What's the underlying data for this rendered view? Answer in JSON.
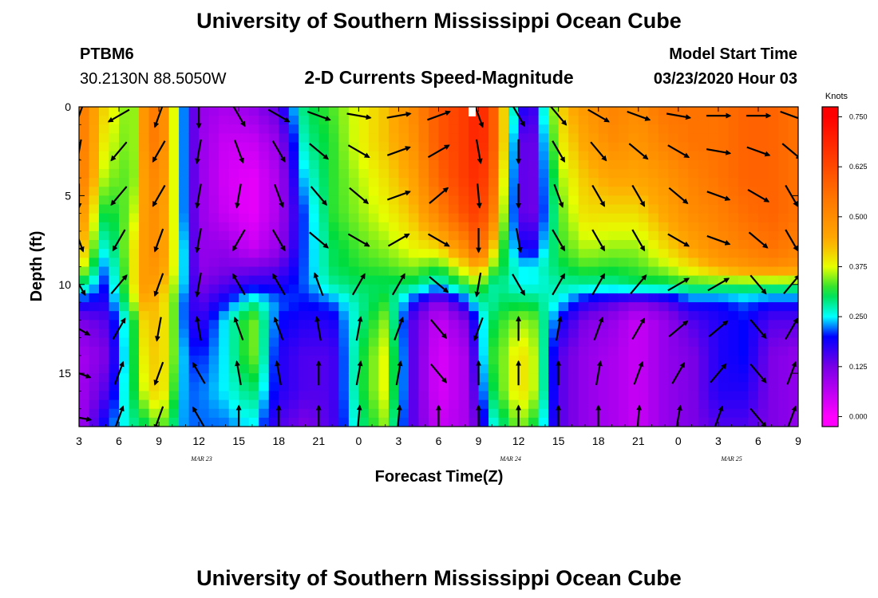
{
  "header": {
    "title": "University of Southern Mississippi Ocean Cube",
    "station_id": "PTBM6",
    "station_coords": "30.2130N 88.5050W",
    "subtitle": "2-D Currents Speed-Magnitude",
    "model_start_label": "Model Start Time",
    "model_start_value": "03/23/2020 Hour 03"
  },
  "footer": {
    "title": "University of Southern Mississippi Ocean Cube"
  },
  "chart_data": {
    "type": "heatmap",
    "title": "2-D Currents Speed-Magnitude",
    "xlabel": "Forecast Time(Z)",
    "ylabel": "Depth (ft)",
    "x_unit": "forecast hours since model start (03/23/2020 03Z)",
    "xlim": [
      0,
      54
    ],
    "ylim": [
      18,
      0
    ],
    "x_ticks": [
      {
        "h": 0,
        "label": "3"
      },
      {
        "h": 3,
        "label": "6"
      },
      {
        "h": 6,
        "label": "9"
      },
      {
        "h": 9,
        "label": "12"
      },
      {
        "h": 12,
        "label": "15"
      },
      {
        "h": 15,
        "label": "18"
      },
      {
        "h": 18,
        "label": "21"
      },
      {
        "h": 21,
        "label": "0"
      },
      {
        "h": 24,
        "label": "3"
      },
      {
        "h": 27,
        "label": "6"
      },
      {
        "h": 30,
        "label": "9"
      },
      {
        "h": 33,
        "label": "12"
      },
      {
        "h": 36,
        "label": "15"
      },
      {
        "h": 39,
        "label": "18"
      },
      {
        "h": 42,
        "label": "21"
      },
      {
        "h": 45,
        "label": "0"
      },
      {
        "h": 48,
        "label": "3"
      },
      {
        "h": 51,
        "label": "6"
      },
      {
        "h": 54,
        "label": "9"
      }
    ],
    "date_labels": [
      {
        "h": 9.2,
        "label": "MAR 23"
      },
      {
        "h": 32.4,
        "label": "MAR 24"
      },
      {
        "h": 49,
        "label": "MAR 25"
      }
    ],
    "y_ticks": [
      0,
      5,
      10,
      15
    ],
    "colorbar": {
      "title": "Knots",
      "min": -0.025,
      "max": 0.775,
      "ticks": [
        "0.000",
        "0.125",
        "0.250",
        "0.375",
        "0.500",
        "0.625",
        "0.750"
      ],
      "tick_values": [
        0.0,
        0.125,
        0.25,
        0.375,
        0.5,
        0.625,
        0.75
      ]
    },
    "speed_profiles": {
      "depths_ft": [
        0,
        2,
        4,
        6,
        8,
        9,
        10,
        11,
        12,
        14,
        16,
        18
      ],
      "series": [
        {
          "h": 0,
          "values": [
            0.55,
            0.55,
            0.55,
            0.5,
            0.45,
            0.4,
            0.3,
            0.2,
            0.12,
            0.08,
            0.08,
            0.08
          ]
        },
        {
          "h": 2,
          "values": [
            0.4,
            0.38,
            0.35,
            0.3,
            0.25,
            0.22,
            0.2,
            0.18,
            0.15,
            0.12,
            0.15,
            0.2
          ]
        },
        {
          "h": 4,
          "values": [
            0.33,
            0.33,
            0.33,
            0.35,
            0.38,
            0.38,
            0.38,
            0.35,
            0.3,
            0.3,
            0.3,
            0.28
          ]
        },
        {
          "h": 5,
          "values": [
            0.5,
            0.5,
            0.48,
            0.48,
            0.48,
            0.48,
            0.48,
            0.45,
            0.42,
            0.4,
            0.38,
            0.3
          ]
        },
        {
          "h": 6,
          "values": [
            0.55,
            0.55,
            0.52,
            0.5,
            0.5,
            0.48,
            0.45,
            0.42,
            0.42,
            0.42,
            0.42,
            0.35
          ]
        },
        {
          "h": 7,
          "values": [
            0.4,
            0.4,
            0.4,
            0.4,
            0.4,
            0.4,
            0.38,
            0.36,
            0.36,
            0.36,
            0.34,
            0.3
          ]
        },
        {
          "h": 8,
          "values": [
            0.2,
            0.2,
            0.2,
            0.2,
            0.22,
            0.22,
            0.22,
            0.2,
            0.2,
            0.22,
            0.22,
            0.22
          ]
        },
        {
          "h": 9,
          "values": [
            0.1,
            0.1,
            0.1,
            0.1,
            0.1,
            0.1,
            0.12,
            0.14,
            0.16,
            0.2,
            0.22,
            0.22
          ]
        },
        {
          "h": 11,
          "values": [
            0.08,
            0.05,
            0.04,
            0.05,
            0.1,
            0.12,
            0.15,
            0.2,
            0.25,
            0.25,
            0.25,
            0.22
          ]
        },
        {
          "h": 13,
          "values": [
            0.1,
            0.05,
            0.02,
            0.02,
            0.05,
            0.12,
            0.18,
            0.28,
            0.35,
            0.35,
            0.3,
            0.25
          ]
        },
        {
          "h": 15,
          "values": [
            0.15,
            0.1,
            0.08,
            0.08,
            0.1,
            0.14,
            0.18,
            0.22,
            0.2,
            0.18,
            0.18,
            0.15
          ]
        },
        {
          "h": 17,
          "values": [
            0.3,
            0.28,
            0.25,
            0.22,
            0.22,
            0.22,
            0.22,
            0.2,
            0.18,
            0.15,
            0.15,
            0.12
          ]
        },
        {
          "h": 19,
          "values": [
            0.33,
            0.32,
            0.32,
            0.32,
            0.3,
            0.3,
            0.28,
            0.22,
            0.18,
            0.15,
            0.15,
            0.15
          ]
        },
        {
          "h": 21,
          "values": [
            0.38,
            0.38,
            0.36,
            0.35,
            0.33,
            0.32,
            0.3,
            0.28,
            0.28,
            0.3,
            0.3,
            0.28
          ]
        },
        {
          "h": 23,
          "values": [
            0.42,
            0.42,
            0.4,
            0.38,
            0.35,
            0.33,
            0.3,
            0.32,
            0.35,
            0.38,
            0.38,
            0.35
          ]
        },
        {
          "h": 25,
          "values": [
            0.5,
            0.48,
            0.45,
            0.42,
            0.38,
            0.35,
            0.3,
            0.2,
            0.15,
            0.15,
            0.15,
            0.15
          ]
        },
        {
          "h": 27,
          "values": [
            0.6,
            0.6,
            0.58,
            0.52,
            0.4,
            0.32,
            0.25,
            0.1,
            0.05,
            0.03,
            0.03,
            0.05
          ]
        },
        {
          "h": 29,
          "values": [
            0.65,
            0.65,
            0.65,
            0.62,
            0.5,
            0.4,
            0.32,
            0.2,
            0.12,
            0.08,
            0.08,
            0.08
          ]
        },
        {
          "h": 30,
          "values": [
            0.7,
            0.7,
            0.68,
            0.65,
            0.6,
            0.45,
            0.35,
            0.28,
            0.22,
            0.2,
            0.18,
            0.15
          ]
        },
        {
          "h": 31,
          "values": [
            0.62,
            0.62,
            0.6,
            0.55,
            0.42,
            0.35,
            0.28,
            0.28,
            0.3,
            0.32,
            0.3,
            0.25
          ]
        },
        {
          "h": 32,
          "values": [
            0.38,
            0.38,
            0.35,
            0.33,
            0.3,
            0.3,
            0.28,
            0.3,
            0.33,
            0.35,
            0.35,
            0.3
          ]
        },
        {
          "h": 33,
          "values": [
            0.2,
            0.15,
            0.15,
            0.15,
            0.2,
            0.25,
            0.25,
            0.3,
            0.35,
            0.4,
            0.4,
            0.35
          ]
        },
        {
          "h": 34,
          "values": [
            0.15,
            0.12,
            0.12,
            0.12,
            0.18,
            0.25,
            0.25,
            0.3,
            0.35,
            0.38,
            0.38,
            0.32
          ]
        },
        {
          "h": 36,
          "values": [
            0.4,
            0.38,
            0.35,
            0.33,
            0.32,
            0.3,
            0.28,
            0.25,
            0.2,
            0.15,
            0.15,
            0.15
          ]
        },
        {
          "h": 38,
          "values": [
            0.48,
            0.45,
            0.42,
            0.4,
            0.36,
            0.33,
            0.28,
            0.18,
            0.12,
            0.1,
            0.1,
            0.1
          ]
        },
        {
          "h": 40,
          "values": [
            0.52,
            0.5,
            0.45,
            0.4,
            0.35,
            0.32,
            0.28,
            0.15,
            0.1,
            0.08,
            0.08,
            0.08
          ]
        },
        {
          "h": 42,
          "values": [
            0.5,
            0.48,
            0.45,
            0.4,
            0.35,
            0.33,
            0.3,
            0.12,
            0.05,
            0.05,
            0.05,
            0.05
          ]
        },
        {
          "h": 44,
          "values": [
            0.55,
            0.52,
            0.48,
            0.45,
            0.4,
            0.36,
            0.3,
            0.15,
            0.1,
            0.1,
            0.1,
            0.1
          ]
        },
        {
          "h": 46,
          "values": [
            0.55,
            0.55,
            0.52,
            0.5,
            0.45,
            0.4,
            0.32,
            0.2,
            0.15,
            0.12,
            0.12,
            0.12
          ]
        },
        {
          "h": 48,
          "values": [
            0.55,
            0.55,
            0.55,
            0.52,
            0.5,
            0.45,
            0.32,
            0.2,
            0.18,
            0.18,
            0.18,
            0.15
          ]
        },
        {
          "h": 50,
          "values": [
            0.58,
            0.58,
            0.58,
            0.56,
            0.52,
            0.48,
            0.32,
            0.22,
            0.2,
            0.2,
            0.18,
            0.15
          ]
        },
        {
          "h": 52,
          "values": [
            0.58,
            0.58,
            0.58,
            0.58,
            0.55,
            0.5,
            0.32,
            0.2,
            0.15,
            0.12,
            0.12,
            0.12
          ]
        },
        {
          "h": 54,
          "values": [
            0.55,
            0.55,
            0.55,
            0.55,
            0.52,
            0.48,
            0.32,
            0.2,
            0.15,
            0.1,
            0.1,
            0.1
          ]
        }
      ]
    },
    "vectors": {
      "depths_ft": [
        0.5,
        2.5,
        5,
        7.5,
        10,
        12.5,
        15,
        17.5
      ],
      "columns": [
        {
          "h": 0,
          "dirs": [
            200,
            190,
            180,
            160,
            150,
            120,
            110,
            100
          ]
        },
        {
          "h": 3,
          "dirs": [
            240,
            220,
            220,
            210,
            40,
            30,
            20,
            20
          ]
        },
        {
          "h": 6,
          "dirs": [
            200,
            210,
            210,
            200,
            200,
            190,
            200,
            200
          ]
        },
        {
          "h": 9,
          "dirs": [
            180,
            190,
            190,
            190,
            190,
            350,
            330,
            330
          ]
        },
        {
          "h": 12,
          "dirs": [
            150,
            160,
            190,
            210,
            330,
            340,
            350,
            0
          ]
        },
        {
          "h": 15,
          "dirs": [
            120,
            150,
            160,
            150,
            330,
            340,
            350,
            0
          ]
        },
        {
          "h": 18,
          "dirs": [
            110,
            130,
            140,
            130,
            340,
            350,
            0,
            0
          ]
        },
        {
          "h": 21,
          "dirs": [
            100,
            120,
            130,
            120,
            30,
            10,
            10,
            5
          ]
        },
        {
          "h": 24,
          "dirs": [
            80,
            70,
            70,
            60,
            30,
            20,
            10,
            5
          ]
        },
        {
          "h": 27,
          "dirs": [
            70,
            60,
            50,
            120,
            130,
            140,
            140,
            0
          ]
        },
        {
          "h": 30,
          "dirs": [
            160,
            170,
            175,
            180,
            190,
            200,
            0,
            0
          ]
        },
        {
          "h": 33,
          "dirs": [
            150,
            180,
            180,
            170,
            150,
            0,
            0,
            0
          ]
        },
        {
          "h": 36,
          "dirs": [
            140,
            150,
            160,
            150,
            30,
            10,
            0,
            0
          ]
        },
        {
          "h": 39,
          "dirs": [
            120,
            140,
            150,
            150,
            30,
            20,
            10,
            0
          ]
        },
        {
          "h": 42,
          "dirs": [
            110,
            130,
            150,
            150,
            40,
            30,
            20,
            5
          ]
        },
        {
          "h": 45,
          "dirs": [
            100,
            120,
            130,
            120,
            60,
            50,
            30,
            10
          ]
        },
        {
          "h": 48,
          "dirs": [
            90,
            100,
            110,
            110,
            60,
            50,
            40,
            20
          ]
        },
        {
          "h": 51,
          "dirs": [
            90,
            110,
            120,
            130,
            140,
            140,
            140,
            140
          ]
        },
        {
          "h": 53.5,
          "dirs": [
            110,
            130,
            150,
            150,
            40,
            30,
            20,
            20
          ]
        }
      ]
    }
  }
}
